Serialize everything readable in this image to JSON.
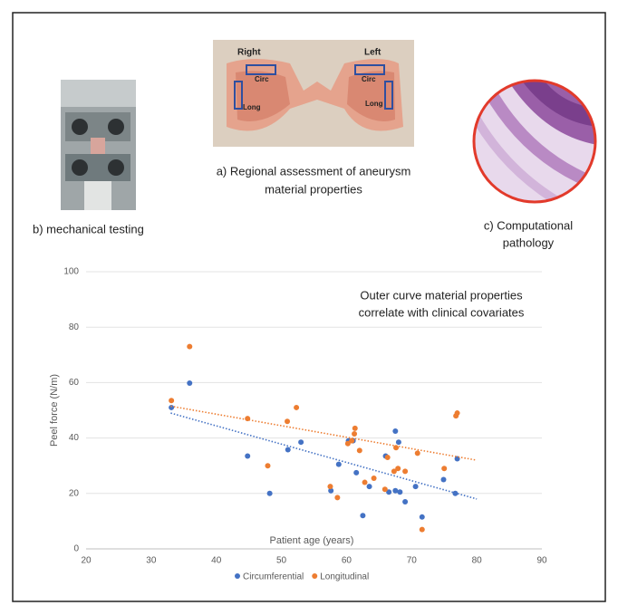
{
  "panels": {
    "photo_labels": [
      "Right",
      "Left",
      "Circ",
      "Long",
      "Circ",
      "Long"
    ],
    "caption_a": [
      "a) Regional assessment of aneurysm",
      "material properties"
    ],
    "caption_b": "b) mechanical testing",
    "caption_c": [
      "c) Computational",
      "pathology"
    ]
  },
  "chart_data": {
    "type": "scatter",
    "annotation": [
      "Outer curve material properties",
      "correlate with clinical covariates"
    ],
    "x_label": "Patient age (years)",
    "y_label": "Peel force (N/m)",
    "xlim": [
      20,
      90
    ],
    "xticks": [
      20,
      30,
      40,
      50,
      60,
      70,
      80,
      90
    ],
    "ylim": [
      0,
      100
    ],
    "yticks": [
      0,
      20,
      40,
      60,
      80,
      100
    ],
    "grid": true,
    "legend": "bottom",
    "series": [
      {
        "name": "Circumferential",
        "color": "#4472c4",
        "x": [
          33.1,
          35.9,
          44.8,
          48.2,
          51,
          53,
          57.6,
          58.8,
          60.3,
          61,
          61.5,
          62.5,
          63.5,
          66,
          66.5,
          67.5,
          67.5,
          68,
          68.2,
          69,
          70.6,
          71.6,
          74.9,
          76.7,
          77
        ],
        "values": [
          51,
          59.8,
          33.5,
          20,
          35.8,
          38.5,
          21,
          30.5,
          39,
          39,
          27.5,
          12,
          22.5,
          33.5,
          20.5,
          42.5,
          21,
          38.5,
          20.5,
          17,
          22.5,
          11.5,
          25,
          20,
          32.5
        ],
        "trendline": {
          "x": [
            33,
            80
          ],
          "y": [
            49,
            18
          ]
        }
      },
      {
        "name": "Longitudinal",
        "color": "#ed7d31",
        "x": [
          33.1,
          35.9,
          44.8,
          47.9,
          50.9,
          52.3,
          57.5,
          58.6,
          60.2,
          60.8,
          61.2,
          61.3,
          62,
          62.8,
          64.2,
          65.9,
          66.3,
          67.3,
          67.6,
          67.9,
          69,
          70.9,
          71.6,
          75,
          76.8,
          77
        ],
        "values": [
          53.5,
          73,
          47,
          30,
          46,
          51,
          22.5,
          18.5,
          38,
          39,
          41.5,
          43.5,
          35.5,
          24,
          25.5,
          21.5,
          33,
          28,
          36.5,
          29,
          28,
          34.5,
          7,
          29,
          48,
          49
        ],
        "trendline": {
          "x": [
            33,
            80
          ],
          "y": [
            51.5,
            32
          ]
        }
      }
    ]
  }
}
